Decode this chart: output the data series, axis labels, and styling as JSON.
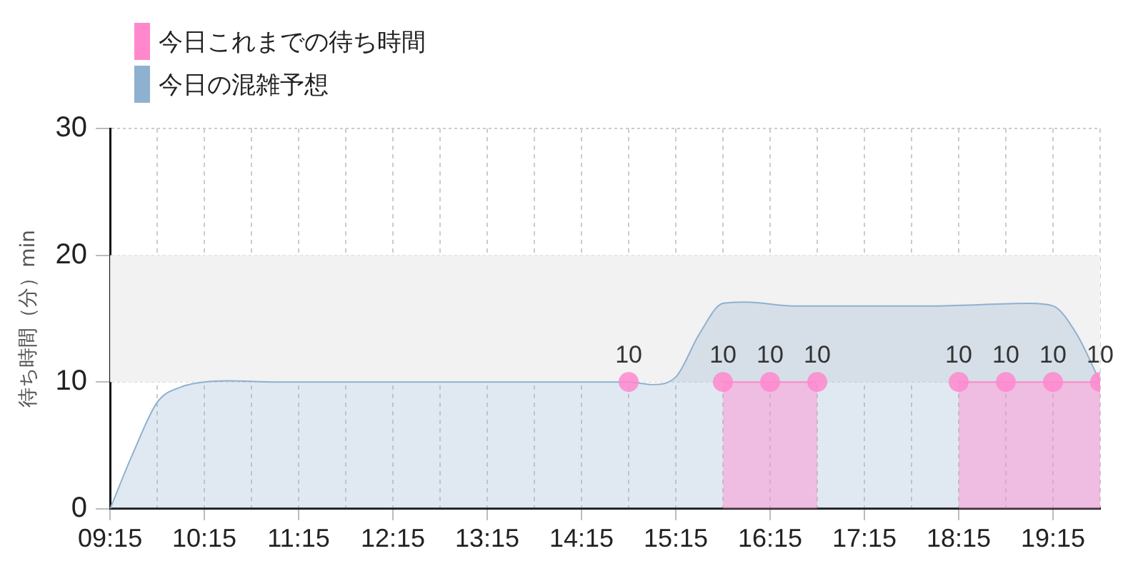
{
  "chart_data": {
    "type": "area",
    "ylabel": "待ち時間（分）min",
    "xlim": [
      9.25,
      19.75
    ],
    "ylim": [
      0,
      30
    ],
    "yticks": [
      0,
      10,
      20,
      30
    ],
    "xticks": [
      {
        "value": 9.25,
        "label": "09:15"
      },
      {
        "value": 9.75,
        "label": null
      },
      {
        "value": 10.25,
        "label": "10:15"
      },
      {
        "value": 10.75,
        "label": null
      },
      {
        "value": 11.25,
        "label": "11:15"
      },
      {
        "value": 11.75,
        "label": null
      },
      {
        "value": 12.25,
        "label": "12:15"
      },
      {
        "value": 12.75,
        "label": null
      },
      {
        "value": 13.25,
        "label": "13:15"
      },
      {
        "value": 13.75,
        "label": null
      },
      {
        "value": 14.25,
        "label": "14:15"
      },
      {
        "value": 14.75,
        "label": null
      },
      {
        "value": 15.25,
        "label": "15:15"
      },
      {
        "value": 15.75,
        "label": null
      },
      {
        "value": 16.25,
        "label": "16:15"
      },
      {
        "value": 16.75,
        "label": null
      },
      {
        "value": 17.25,
        "label": "17:15"
      },
      {
        "value": 17.75,
        "label": null
      },
      {
        "value": 18.25,
        "label": "18:15"
      },
      {
        "value": 18.75,
        "label": null
      },
      {
        "value": 19.25,
        "label": "19:15"
      },
      {
        "value": 19.75,
        "label": null
      }
    ],
    "grid": true,
    "legend": "top left",
    "bands": [
      {
        "axis": "y",
        "from": 10,
        "to": 20,
        "color": "#f2f2f2"
      }
    ],
    "series": [
      {
        "name": "今日これまでの待ち時間",
        "color": "#ff88cc",
        "marker": "circle",
        "x": [
          15.75,
          16.25,
          16.75,
          17.25,
          17.75,
          18.25,
          18.75,
          19.25,
          19.75
        ],
        "values": [
          10,
          10,
          10,
          null,
          null,
          10,
          10,
          10,
          10
        ],
        "value_labels": [
          "10",
          "10",
          "10",
          null,
          null,
          "10",
          "10",
          "10",
          "10"
        ]
      },
      {
        "type": "scatter",
        "color": "#ff88cc",
        "marker": "circle",
        "x": [
          14.75
        ],
        "values": [
          10
        ],
        "value_labels": [
          "10"
        ]
      },
      {
        "name": "今日の混雑予想",
        "color": "#8fb1d0",
        "marker": "none",
        "x": [
          9.25,
          9.5,
          9.75,
          10,
          10.25,
          10.5,
          11,
          12,
          13,
          14,
          14.75,
          15,
          15.25,
          15.5,
          15.75,
          16,
          16.5,
          17,
          18,
          19,
          19.25,
          19.5,
          19.75
        ],
        "values": [
          0,
          4.5,
          8.4,
          9.6,
          10,
          10.1,
          10,
          10,
          10,
          10,
          10,
          9.8,
          10.4,
          13.8,
          16.2,
          16.3,
          16,
          16,
          16,
          16.2,
          16,
          13.8,
          10
        ]
      }
    ]
  }
}
